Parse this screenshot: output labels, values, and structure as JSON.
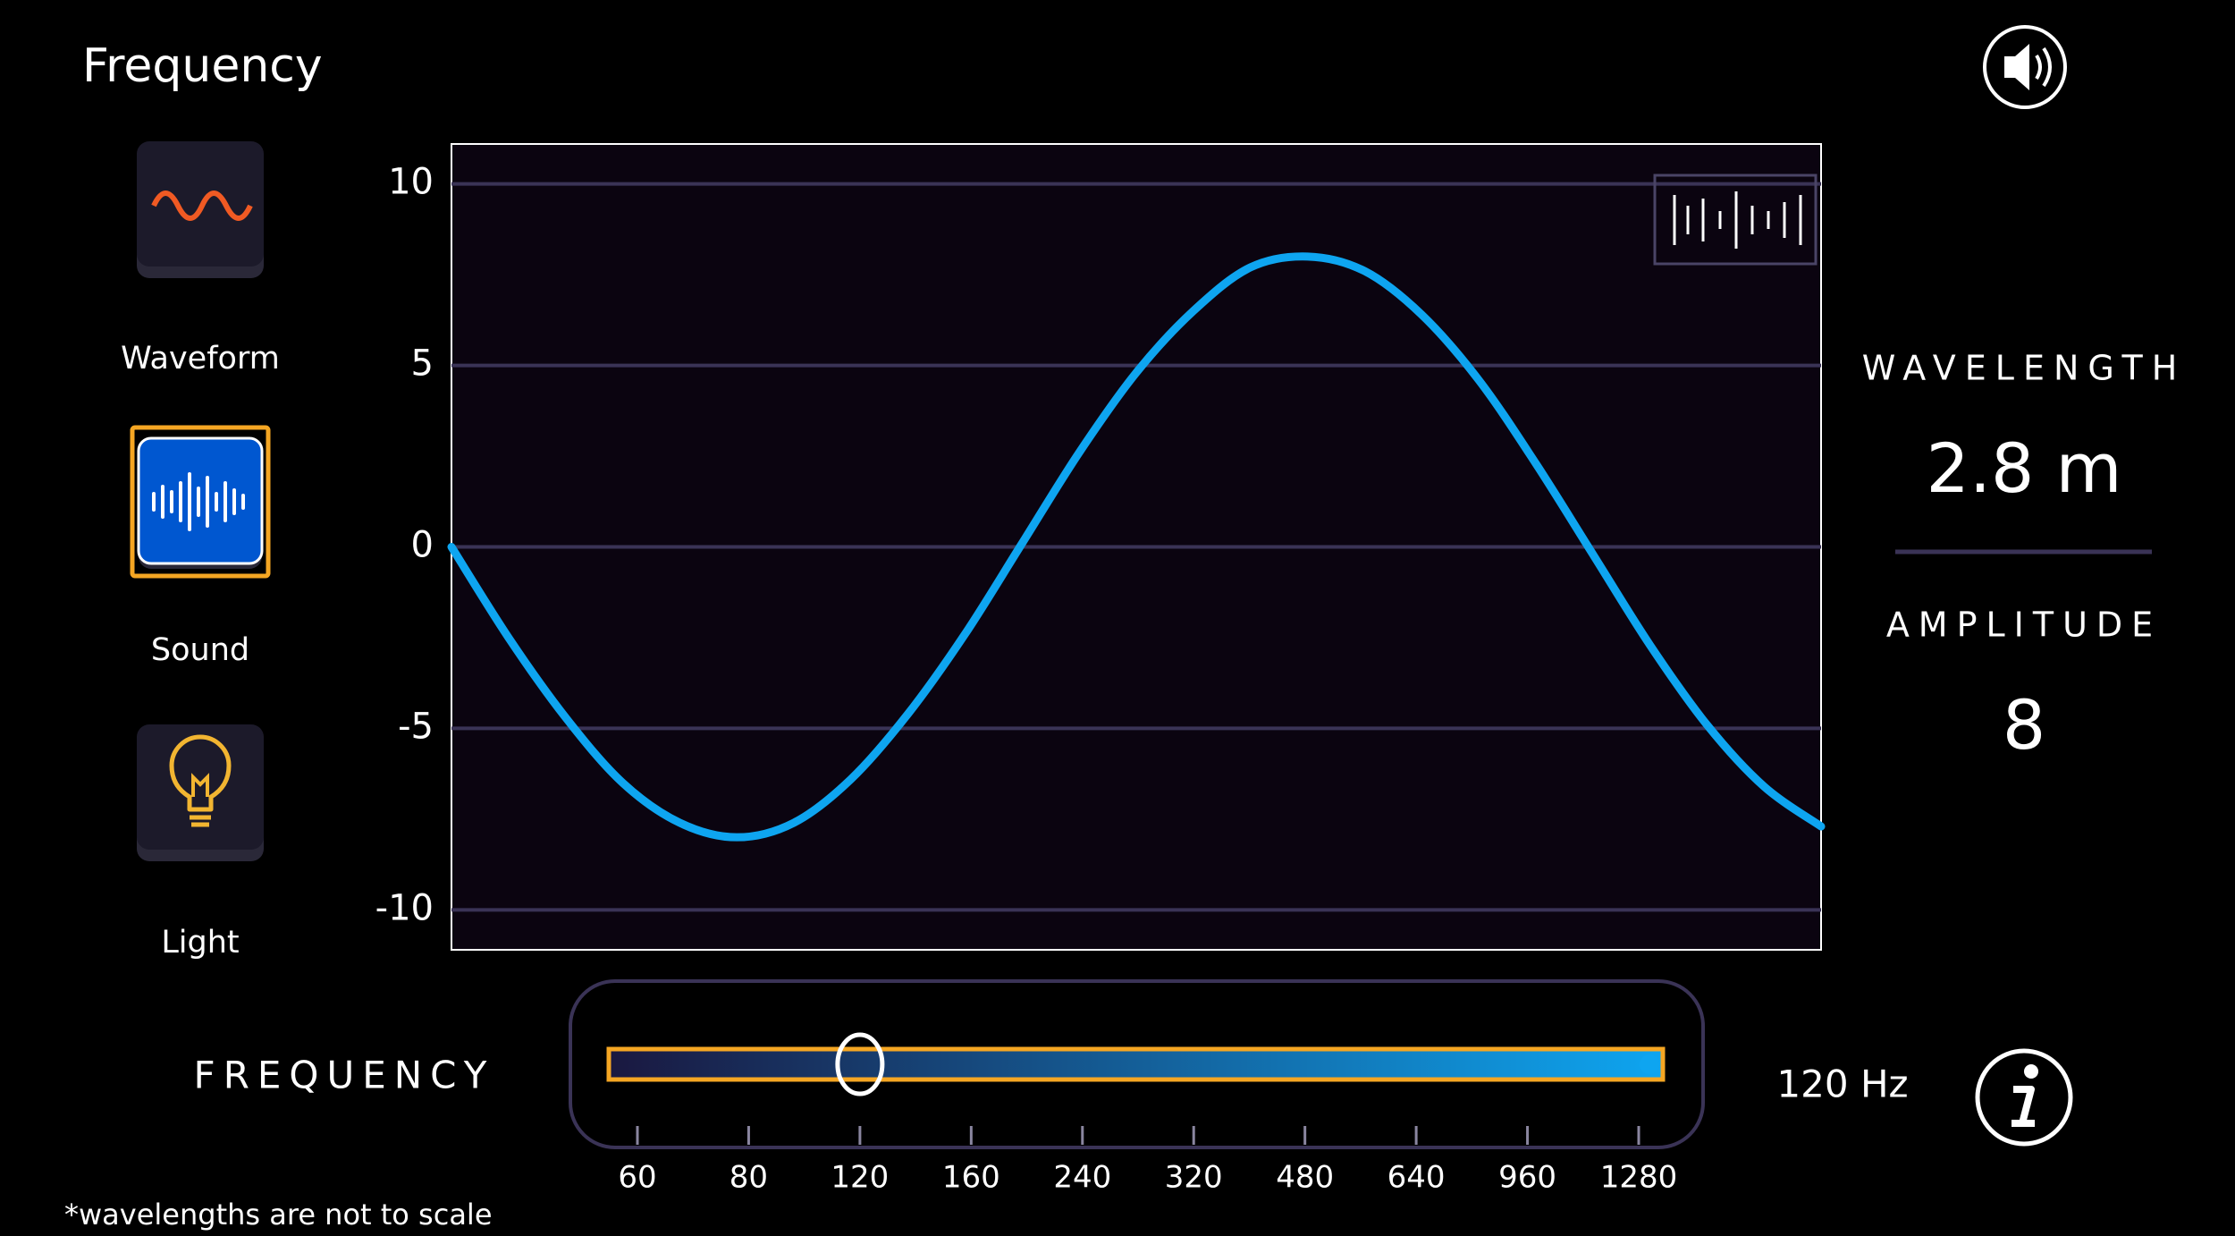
{
  "header": {
    "title": "Frequency"
  },
  "sidebar": {
    "buttons": [
      {
        "label": "Waveform",
        "selected": false
      },
      {
        "label": "Sound",
        "selected": true
      },
      {
        "label": "Light",
        "selected": false
      }
    ]
  },
  "chart_data": {
    "type": "line",
    "x": [
      0,
      1,
      2,
      3,
      4,
      5,
      6,
      7,
      8,
      9,
      10,
      11,
      12,
      13,
      14,
      15,
      16,
      17,
      18,
      19,
      20,
      21,
      22,
      23,
      24
    ],
    "xlim": [
      0,
      24
    ],
    "ylim": [
      -11.1,
      11.1
    ],
    "yticks": [
      10,
      5,
      0,
      -5,
      -10
    ],
    "grid": true,
    "series": [
      {
        "color": "#0ea5f0",
        "values": [
          0,
          -2.5,
          -4.7,
          -6.5,
          -7.6,
          -8.0,
          -7.6,
          -6.4,
          -4.6,
          -2.4,
          0.1,
          2.6,
          4.8,
          6.5,
          7.7,
          8.0,
          7.6,
          6.4,
          4.6,
          2.3,
          -0.2,
          -2.7,
          -4.9,
          -6.6,
          -7.7
        ]
      }
    ]
  },
  "readouts": {
    "wavelength_label": "WAVELENGTH",
    "wavelength": "2.8 m",
    "amplitude_label": "AMPLITUDE",
    "amplitude": "8"
  },
  "slider": {
    "label": "FREQUENCY",
    "ticks": [
      60,
      80,
      120,
      160,
      240,
      320,
      480,
      640,
      960,
      1280
    ],
    "value": 120,
    "readout": "120 Hz"
  },
  "footnote": "*wavelengths are not to scale"
}
